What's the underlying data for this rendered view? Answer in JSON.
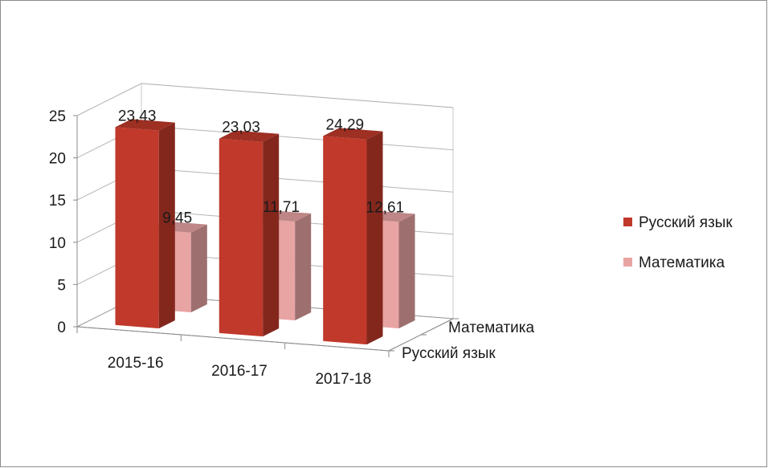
{
  "chart_data": {
    "type": "bar",
    "subtype": "3d-column",
    "title": "",
    "categories": [
      "2015-16",
      "2016-17",
      "2017-18"
    ],
    "series": [
      {
        "name": "Русский язык",
        "values": [
          23.43,
          23.03,
          24.29
        ],
        "labels": [
          "23,43",
          "23,03",
          "24,29"
        ],
        "color": "#c0392b"
      },
      {
        "name": "Математика",
        "values": [
          9.45,
          11.71,
          12.61
        ],
        "labels": [
          "9,45",
          "11,71",
          "12,61"
        ],
        "color": "#e8a3a3"
      }
    ],
    "yticks": [
      "0",
      "5",
      "10",
      "15",
      "20",
      "25"
    ],
    "ylim": [
      0,
      25
    ],
    "depth_axis_labels": [
      "Математика",
      "Русский язык"
    ],
    "grid": true,
    "legend_position": "right"
  }
}
